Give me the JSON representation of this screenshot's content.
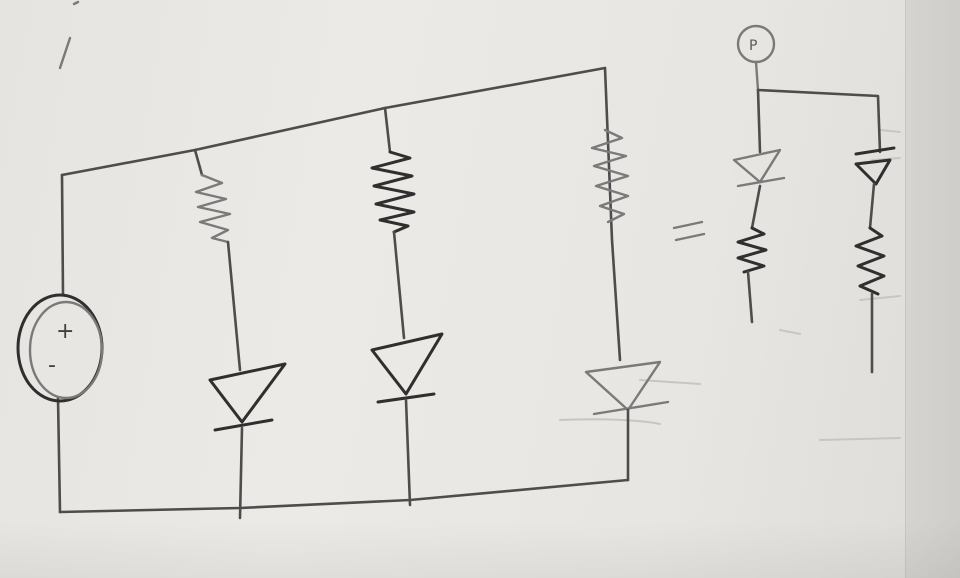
{
  "source": {
    "plus_label": "+",
    "minus_label": "-"
  },
  "probe": {
    "label": "P"
  },
  "equivalence": {
    "symbol": "="
  }
}
